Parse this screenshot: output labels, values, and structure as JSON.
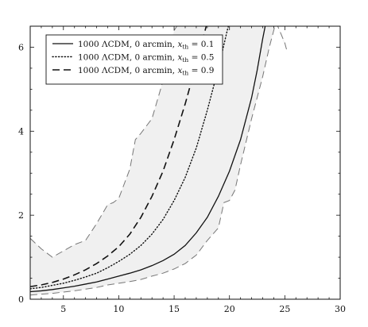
{
  "chart_data": {
    "type": "line",
    "title": "",
    "xlabel": "",
    "ylabel": "",
    "xlim": [
      2,
      30
    ],
    "ylim": [
      0,
      6.5
    ],
    "x_ticks": [
      5,
      10,
      15,
      20,
      25,
      30
    ],
    "y_ticks": [
      0,
      2,
      4,
      6
    ],
    "grid": false,
    "legend_position": "top-left",
    "band": {
      "fill": "#f0f0f0",
      "edge_color": "#777777",
      "upper": [
        [
          2,
          1.45
        ],
        [
          3,
          1.2
        ],
        [
          4,
          1.0
        ],
        [
          5,
          1.15
        ],
        [
          6,
          1.3
        ],
        [
          7,
          1.4
        ],
        [
          8,
          1.8
        ],
        [
          9,
          2.25
        ],
        [
          9.5,
          2.3
        ],
        [
          10,
          2.4
        ],
        [
          11,
          3.1
        ],
        [
          11.5,
          3.8
        ],
        [
          12,
          3.95
        ],
        [
          13,
          4.3
        ],
        [
          14,
          5.2
        ],
        [
          15,
          6.4
        ],
        [
          15.5,
          6.6
        ]
      ],
      "upper_right": [
        [
          24.2,
          6.6
        ],
        [
          25,
          6.1
        ],
        [
          25.2,
          5.9
        ]
      ],
      "lower": [
        [
          2,
          0.1
        ],
        [
          3,
          0.12
        ],
        [
          4,
          0.14
        ],
        [
          5,
          0.17
        ],
        [
          6,
          0.2
        ],
        [
          7,
          0.24
        ],
        [
          8,
          0.28
        ],
        [
          9,
          0.34
        ],
        [
          10,
          0.38
        ],
        [
          11,
          0.42
        ],
        [
          12,
          0.47
        ],
        [
          13,
          0.55
        ],
        [
          14,
          0.62
        ],
        [
          15,
          0.72
        ],
        [
          16,
          0.85
        ],
        [
          17,
          1.05
        ],
        [
          18,
          1.4
        ],
        [
          19,
          1.7
        ],
        [
          19.5,
          2.3
        ],
        [
          20,
          2.35
        ],
        [
          20.5,
          2.6
        ],
        [
          21,
          3.2
        ],
        [
          22,
          4.3
        ],
        [
          23,
          5.3
        ],
        [
          23.6,
          6.0
        ],
        [
          24.2,
          6.6
        ]
      ]
    },
    "series": [
      {
        "name": "1000 ΛCDM, 0 arcmin, x_th = 0.1",
        "style": "solid",
        "color": "#111111",
        "points": [
          [
            2,
            0.18
          ],
          [
            3,
            0.2
          ],
          [
            4,
            0.23
          ],
          [
            5,
            0.27
          ],
          [
            6,
            0.31
          ],
          [
            7,
            0.36
          ],
          [
            8,
            0.41
          ],
          [
            9,
            0.48
          ],
          [
            10,
            0.55
          ],
          [
            11,
            0.62
          ],
          [
            12,
            0.7
          ],
          [
            13,
            0.8
          ],
          [
            14,
            0.92
          ],
          [
            15,
            1.07
          ],
          [
            16,
            1.28
          ],
          [
            17,
            1.58
          ],
          [
            18,
            1.95
          ],
          [
            19,
            2.45
          ],
          [
            20,
            3.05
          ],
          [
            21,
            3.8
          ],
          [
            22,
            4.8
          ],
          [
            22.5,
            5.45
          ],
          [
            23,
            6.2
          ],
          [
            23.3,
            6.6
          ]
        ]
      },
      {
        "name": "1000 ΛCDM, 0 arcmin, x_th = 0.5",
        "style": "dotted",
        "color": "#111111",
        "points": [
          [
            2,
            0.25
          ],
          [
            3,
            0.28
          ],
          [
            4,
            0.33
          ],
          [
            5,
            0.38
          ],
          [
            6,
            0.45
          ],
          [
            7,
            0.53
          ],
          [
            8,
            0.62
          ],
          [
            9,
            0.75
          ],
          [
            10,
            0.9
          ],
          [
            11,
            1.07
          ],
          [
            12,
            1.28
          ],
          [
            13,
            1.55
          ],
          [
            14,
            1.9
          ],
          [
            15,
            2.35
          ],
          [
            16,
            2.9
          ],
          [
            17,
            3.6
          ],
          [
            18,
            4.5
          ],
          [
            19,
            5.5
          ],
          [
            19.8,
            6.4
          ],
          [
            20,
            6.6
          ]
        ]
      },
      {
        "name": "1000 ΛCDM, 0 arcmin, x_th = 0.9",
        "style": "dashed",
        "color": "#111111",
        "points": [
          [
            2,
            0.3
          ],
          [
            3,
            0.34
          ],
          [
            4,
            0.4
          ],
          [
            5,
            0.48
          ],
          [
            6,
            0.58
          ],
          [
            7,
            0.7
          ],
          [
            8,
            0.85
          ],
          [
            9,
            1.03
          ],
          [
            10,
            1.25
          ],
          [
            11,
            1.55
          ],
          [
            12,
            1.95
          ],
          [
            13,
            2.45
          ],
          [
            14,
            3.05
          ],
          [
            15,
            3.8
          ],
          [
            16,
            4.65
          ],
          [
            17,
            5.6
          ],
          [
            17.8,
            6.4
          ],
          [
            18,
            6.6
          ]
        ]
      }
    ],
    "legend": [
      {
        "prefix": "1000 ΛCDM, 0 arcmin, ",
        "var": "x",
        "sub": "th",
        "eq": " =  ",
        "value": "0.1"
      },
      {
        "prefix": "1000 ΛCDM, 0 arcmin, ",
        "var": "x",
        "sub": "th",
        "eq": " =  ",
        "value": "0.5"
      },
      {
        "prefix": "1000 ΛCDM, 0 arcmin, ",
        "var": "x",
        "sub": "th",
        "eq": " =  ",
        "value": "0.9"
      }
    ]
  }
}
